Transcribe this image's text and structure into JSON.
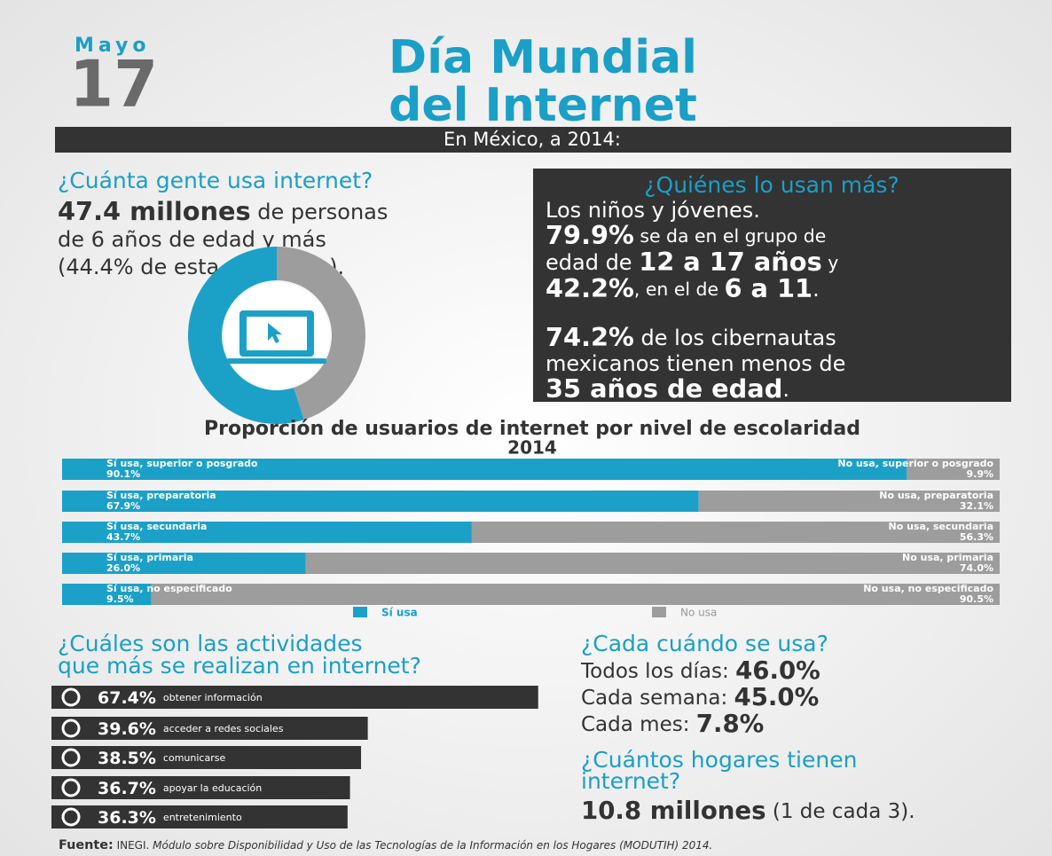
{
  "header": {
    "month": "Mayo",
    "day": "17",
    "title": [
      "Día Mundial",
      "del Internet"
    ],
    "banner": "En México, a 2014:"
  },
  "users": {
    "heading": "¿Cuánta gente usa internet?",
    "lines": [
      [
        {
          "b": "47.4 millones"
        },
        {
          "t": " de personas"
        }
      ],
      [
        {
          "t": "de 6 años de edad y más"
        }
      ],
      [
        {
          "t": "(44.4% de esta población)."
        }
      ]
    ]
  },
  "who": {
    "heading": "¿Quiénes lo usan más?",
    "lines": [
      [
        {
          "t": "Los niños y jóvenes."
        }
      ],
      [
        {
          "b": "79.9%"
        },
        {
          "s": " se da en el grupo de"
        }
      ],
      [
        {
          "t": "edad de "
        },
        {
          "b": "12 a 17 años"
        },
        {
          "s": " y"
        }
      ],
      [
        {
          "b": "42.2%"
        },
        {
          "s": ", en el de "
        },
        {
          "b": "6 a 11"
        },
        {
          "t": "."
        }
      ],
      [
        {
          "b": "74.2%"
        },
        {
          "t": " de los cibernautas"
        }
      ],
      [
        {
          "t": "mexicanos tienen menos de"
        }
      ],
      [
        {
          "b": "35 años de edad"
        },
        {
          "t": "."
        }
      ]
    ]
  },
  "frequency": {
    "heading": "¿Cada cuándo se usa?",
    "lines": [
      [
        {
          "t": "Todos los días: "
        },
        {
          "b": "46.0%"
        }
      ],
      [
        {
          "t": "Cada semana: "
        },
        {
          "b": "45.0%"
        }
      ],
      [
        {
          "t": "Cada mes: "
        },
        {
          "b": "7.8%"
        }
      ]
    ]
  },
  "homes": {
    "heading": [
      "¿Cuántos hogares tienen",
      "internet?"
    ],
    "line": [
      {
        "b": "10.8 millones"
      },
      {
        "t": " (1 de cada 3)."
      }
    ]
  },
  "activities_heading": [
    "¿Cuáles son las actividades",
    "que más se realizan en internet?"
  ],
  "footer": [
    {
      "b": "Fuente:"
    },
    {
      "t": " INEGI. "
    },
    {
      "i": "Módulo sobre Disponibilidad y Uso de las Tecnologías de la Información en los Hogares (MODUTIH) 2014."
    }
  ],
  "chart_data": [
    {
      "type": "pie",
      "categories": [
        null,
        null
      ],
      "values": [
        55,
        45
      ],
      "colors": [
        "#1ba1c8",
        "#9d9d9d"
      ]
    },
    {
      "type": "bar",
      "title": "Proporción de usuarios de internet por nivel de escolaridad",
      "subtitle": "2014",
      "xlim": [
        0,
        100
      ],
      "series": [
        {
          "name": "Sí usa",
          "color": "#1ba1c8",
          "labels": [
            "Sí usa, superior o posgrado",
            "Sí usa, preparatoria",
            "Sí usa, secundaria",
            "Sí usa, primaria",
            "Sí usa, no especificado"
          ],
          "values": [
            90.1,
            67.9,
            43.7,
            26.0,
            9.5
          ],
          "value_labels": [
            "90.1%",
            "67.9%",
            "43.7%",
            "26.0%",
            "9.5%"
          ]
        },
        {
          "name": "No usa",
          "color": "#9d9d9d",
          "labels": [
            "No usa, superior o posgrado",
            "No usa, preparatoria",
            "No usa, secundaria",
            "No usa, primaria",
            "No usa, no especificado"
          ],
          "values": [
            9.9,
            32.1,
            56.3,
            74.0,
            90.5
          ],
          "value_labels": [
            "9.9%",
            "32.1%",
            "56.3%",
            "74.0%",
            "90.5%"
          ]
        }
      ]
    },
    {
      "type": "bar",
      "xlim": [
        0,
        100
      ],
      "color": "#333333",
      "categories": [
        "obtener información",
        "acceder a redes sociales",
        "comunicarse",
        "apoyar la educación",
        "entretenimiento"
      ],
      "values": [
        67.4,
        39.6,
        38.5,
        36.7,
        36.3
      ],
      "value_labels": [
        "67.4%",
        "39.6%",
        "38.5%",
        "36.7%",
        "36.3%"
      ]
    }
  ]
}
